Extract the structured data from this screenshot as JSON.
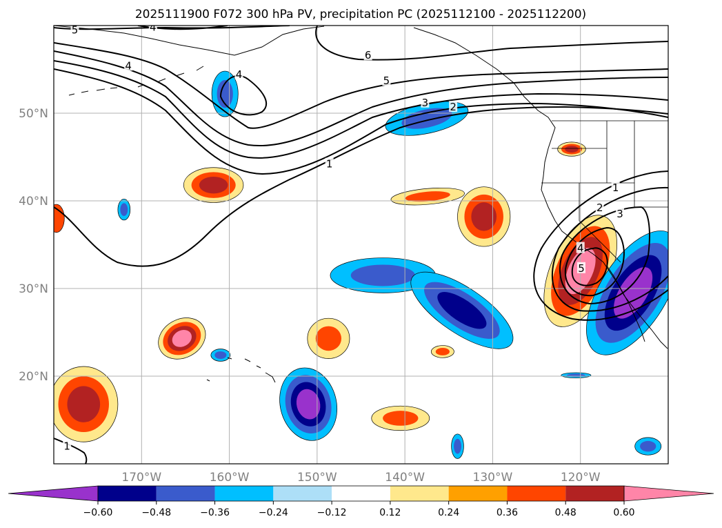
{
  "title": "2025111900 F072 300 hPa PV, precipitation PC (2025112100 - 2025112200)",
  "map": {
    "lon_range": [
      -180,
      -110
    ],
    "lat_range": [
      10,
      60
    ],
    "lon_ticks": [
      {
        "value": -170,
        "label": "170°W"
      },
      {
        "value": -160,
        "label": "160°W"
      },
      {
        "value": -150,
        "label": "150°W"
      },
      {
        "value": -140,
        "label": "140°W"
      },
      {
        "value": -130,
        "label": "130°W"
      },
      {
        "value": -120,
        "label": "120°W"
      }
    ],
    "lat_ticks": [
      {
        "value": 20,
        "label": "20°N"
      },
      {
        "value": 30,
        "label": "30°N"
      },
      {
        "value": 40,
        "label": "40°N"
      },
      {
        "value": 50,
        "label": "50°N"
      }
    ],
    "pv_contour_labels": [
      {
        "text": "5",
        "lon": -177.6,
        "lat": 59.5
      },
      {
        "text": "4",
        "lon": -168.7,
        "lat": 59.8
      },
      {
        "text": "4",
        "lon": -171.5,
        "lat": 55.4
      },
      {
        "text": "4",
        "lon": -158.9,
        "lat": 54.4
      },
      {
        "text": "6",
        "lon": -144.2,
        "lat": 56.6
      },
      {
        "text": "5",
        "lon": -142.1,
        "lat": 53.7
      },
      {
        "text": "3",
        "lon": -137.7,
        "lat": 51.2
      },
      {
        "text": "2",
        "lon": -134.5,
        "lat": 50.7
      },
      {
        "text": "1",
        "lon": -148.6,
        "lat": 44.2
      },
      {
        "text": "1",
        "lon": -116.0,
        "lat": 41.5
      },
      {
        "text": "2",
        "lon": -117.8,
        "lat": 39.2
      },
      {
        "text": "3",
        "lon": -115.5,
        "lat": 38.5
      },
      {
        "text": "4",
        "lon": -120.0,
        "lat": 34.6
      },
      {
        "text": "5",
        "lon": -119.9,
        "lat": 32.3
      },
      {
        "text": "1",
        "lon": -178.5,
        "lat": 12.0
      }
    ]
  },
  "colorbar": {
    "levels": [
      -0.6,
      -0.48,
      -0.36,
      -0.24,
      -0.12,
      0.12,
      0.24,
      0.36,
      0.48,
      0.6
    ],
    "tick_labels": [
      "−0.60",
      "−0.48",
      "−0.36",
      "−0.24",
      "−0.12",
      "0.12",
      "0.24",
      "0.36",
      "0.48",
      "0.60"
    ],
    "colors": [
      "#9932CC",
      "#00008B",
      "#3A5BCC",
      "#00BFFF",
      "#ADDFF7",
      "#FFFFFF",
      "#FFE88C",
      "#FFA000",
      "#FF4500",
      "#B22222",
      "#FF85A8"
    ]
  },
  "precip_anomalies": [
    {
      "name": "aleutian-blue",
      "lon": -160.5,
      "lat": 52.2,
      "rx": 1.5,
      "ry": 2.6,
      "rot": 0,
      "levels": [
        "#00BFFF",
        "#3A5BCC"
      ]
    },
    {
      "name": "gulf-of-alaska-blue",
      "lon": -137.5,
      "lat": 49.4,
      "rx": 4.8,
      "ry": 1.7,
      "rot": -12,
      "levels": [
        "#00BFFF",
        "#3A5BCC"
      ]
    },
    {
      "name": "midpac-north-red",
      "lon": -161.8,
      "lat": 41.8,
      "rx": 3.4,
      "ry": 2.0,
      "rot": 0,
      "levels": [
        "#FFE88C",
        "#FF4500",
        "#B22222"
      ]
    },
    {
      "name": "dateline-blue-blob",
      "lon": -172.0,
      "lat": 39.0,
      "rx": 0.7,
      "ry": 1.2,
      "rot": 0,
      "levels": [
        "#00BFFF",
        "#3A5BCC"
      ]
    },
    {
      "name": "west-edge-red",
      "lon": -179.7,
      "lat": 38.0,
      "rx": 0.9,
      "ry": 1.6,
      "rot": 0,
      "levels": [
        "#FF4500"
      ]
    },
    {
      "name": "central-red-strip",
      "lon": -137.4,
      "lat": 40.5,
      "rx": 4.2,
      "ry": 0.9,
      "rot": -5,
      "levels": [
        "#FFE88C",
        "#FF4500"
      ]
    },
    {
      "name": "offshore-red",
      "lon": -131.0,
      "lat": 38.2,
      "rx": 3.0,
      "ry": 3.4,
      "rot": 0,
      "levels": [
        "#FFE88C",
        "#FF4500",
        "#B22222"
      ]
    },
    {
      "name": "subtropical-blue-band-a",
      "lon": -142.5,
      "lat": 31.5,
      "rx": 6.0,
      "ry": 2.0,
      "rot": 0,
      "levels": [
        "#00BFFF",
        "#3A5BCC"
      ]
    },
    {
      "name": "subtropical-blue-band-b",
      "lon": -133.5,
      "lat": 27.5,
      "rx": 6.8,
      "ry": 2.6,
      "rot": 34,
      "levels": [
        "#00BFFF",
        "#3A5BCC",
        "#00008B"
      ]
    },
    {
      "name": "southwest-red",
      "lon": -120.0,
      "lat": 32.0,
      "rx": 3.4,
      "ry": 6.8,
      "rot": 24,
      "levels": [
        "#FFE88C",
        "#FF4500",
        "#B22222",
        "#FF85A8"
      ]
    },
    {
      "name": "mexico-blue",
      "lon": -114.0,
      "lat": 29.5,
      "rx": 3.8,
      "ry": 8.0,
      "rot": 32,
      "levels": [
        "#00BFFF",
        "#3A5BCC",
        "#00008B",
        "#9932CC"
      ]
    },
    {
      "name": "hawaii-north-red",
      "lon": -165.4,
      "lat": 24.3,
      "rx": 2.8,
      "ry": 2.2,
      "rot": -28,
      "levels": [
        "#FFE88C",
        "#FF4500",
        "#B22222",
        "#FF85A8"
      ]
    },
    {
      "name": "mid-red-blob",
      "lon": -148.7,
      "lat": 24.3,
      "rx": 2.4,
      "ry": 2.3,
      "rot": 0,
      "levels": [
        "#FFE88C",
        "#FF4500"
      ]
    },
    {
      "name": "small-red-blob",
      "lon": -135.7,
      "lat": 22.8,
      "rx": 1.3,
      "ry": 0.7,
      "rot": 0,
      "levels": [
        "#FFE88C",
        "#FF4500"
      ]
    },
    {
      "name": "hawaii-blue",
      "lon": -151.0,
      "lat": 16.8,
      "rx": 3.2,
      "ry": 4.2,
      "rot": -14,
      "levels": [
        "#00BFFF",
        "#3A5BCC",
        "#00008B",
        "#9932CC"
      ]
    },
    {
      "name": "hawaii-west-blue",
      "lon": -161.0,
      "lat": 22.4,
      "rx": 1.1,
      "ry": 0.7,
      "rot": 0,
      "levels": [
        "#00BFFF",
        "#3A5BCC"
      ]
    },
    {
      "name": "southwest-corner-red",
      "lon": -176.6,
      "lat": 16.8,
      "rx": 3.9,
      "ry": 4.3,
      "rot": 0,
      "levels": [
        "#FFE88C",
        "#FF4500",
        "#B22222"
      ]
    },
    {
      "name": "south-red-blob",
      "lon": -140.5,
      "lat": 15.2,
      "rx": 3.3,
      "ry": 1.4,
      "rot": 0,
      "levels": [
        "#FFE88C",
        "#FF4500"
      ]
    },
    {
      "name": "us-nw-red",
      "lon": -121.0,
      "lat": 45.9,
      "rx": 1.6,
      "ry": 0.8,
      "rot": 0,
      "levels": [
        "#FFE88C",
        "#FF4500",
        "#B22222"
      ]
    },
    {
      "name": "sw-corner-blue-small",
      "lon": -134.0,
      "lat": 12.0,
      "rx": 0.7,
      "ry": 1.4,
      "rot": 0,
      "levels": [
        "#00BFFF",
        "#3A5BCC"
      ]
    },
    {
      "name": "se-corner-blue",
      "lon": -112.3,
      "lat": 12.0,
      "rx": 1.5,
      "ry": 1.0,
      "rot": 0,
      "levels": [
        "#00BFFF",
        "#3A5BCC"
      ]
    },
    {
      "name": "se-blue-small",
      "lon": -120.5,
      "lat": 20.1,
      "rx": 1.7,
      "ry": 0.3,
      "rot": 0,
      "levels": [
        "#00BFFF",
        "#3A5BCC"
      ]
    }
  ]
}
